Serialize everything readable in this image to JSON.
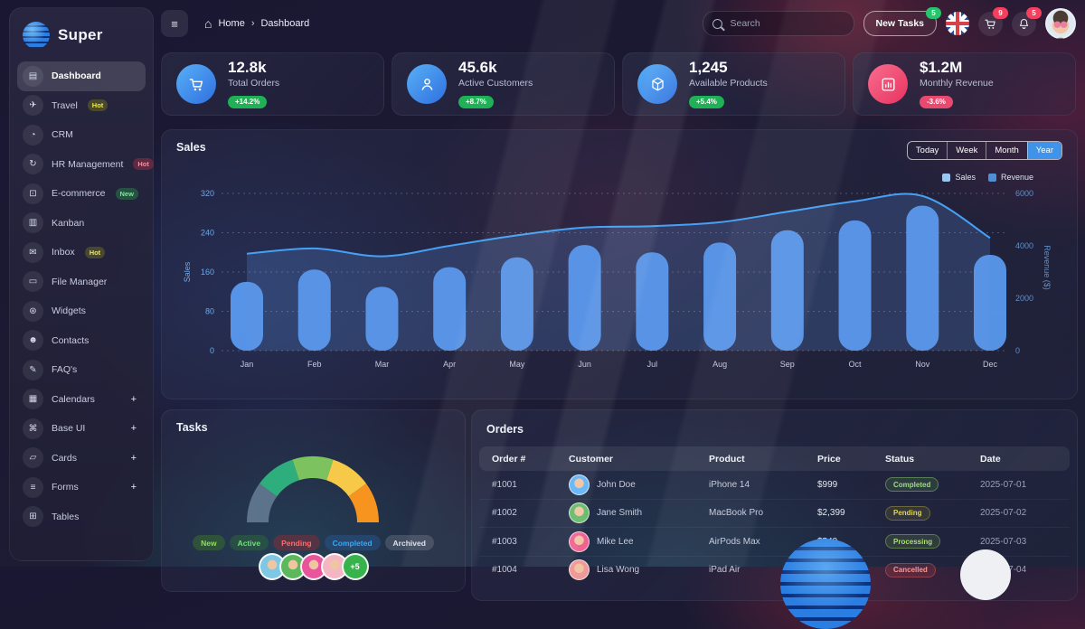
{
  "brand": {
    "name": "Super"
  },
  "topbar": {
    "breadcrumb": [
      "Home",
      "Dashboard"
    ],
    "search_placeholder": "Search",
    "new_tasks": {
      "label": "New Tasks",
      "badge": "5"
    },
    "cart_badge": "9",
    "notification_badge": "5"
  },
  "sidebar": {
    "items": [
      {
        "label": "Dashboard",
        "icon": "dashboard-icon",
        "active": true
      },
      {
        "label": "Travel",
        "icon": "travel-icon",
        "badge": {
          "text": "Hot",
          "style": "hot-yellow"
        }
      },
      {
        "label": "CRM",
        "icon": "crm-icon"
      },
      {
        "label": "HR Management",
        "icon": "hr-icon",
        "badge": {
          "text": "Hot",
          "style": "hot-red"
        }
      },
      {
        "label": "E-commerce",
        "icon": "ecommerce-icon",
        "badge": {
          "text": "New",
          "style": "new-green"
        }
      },
      {
        "label": "Kanban",
        "icon": "kanban-icon"
      },
      {
        "label": "Inbox",
        "icon": "inbox-icon",
        "badge": {
          "text": "Hot",
          "style": "hot-yellow"
        }
      },
      {
        "label": "File Manager",
        "icon": "file-manager-icon"
      },
      {
        "label": "Widgets",
        "icon": "widgets-icon"
      },
      {
        "label": "Contacts",
        "icon": "contacts-icon"
      },
      {
        "label": "FAQ's",
        "icon": "faq-icon"
      },
      {
        "label": "Calendars",
        "icon": "calendars-icon",
        "expandable": true
      },
      {
        "label": "Base UI",
        "icon": "base-ui-icon",
        "expandable": true
      },
      {
        "label": "Cards",
        "icon": "cards-icon",
        "expandable": true
      },
      {
        "label": "Forms",
        "icon": "forms-icon",
        "expandable": true
      },
      {
        "label": "Tables",
        "icon": "tables-icon"
      }
    ]
  },
  "stats": [
    {
      "value": "12.8k",
      "label": "Total Orders",
      "delta": "+14.2%",
      "trend": "up",
      "icon": "cart-icon",
      "color": "#2f80ed"
    },
    {
      "value": "45.6k",
      "label": "Active Customers",
      "delta": "+8.7%",
      "trend": "up",
      "icon": "customers-icon",
      "color": "#2f80ed"
    },
    {
      "value": "1,245",
      "label": "Available Products",
      "delta": "+5.4%",
      "trend": "up",
      "icon": "products-icon",
      "color": "#2f80ed"
    },
    {
      "value": "$1.2M",
      "label": "Monthly Revenue",
      "delta": "-3.6%",
      "trend": "down",
      "icon": "revenue-icon",
      "color": "#ef4565"
    }
  ],
  "sales_panel": {
    "title": "Sales",
    "tabs": [
      "Today",
      "Week",
      "Month",
      "Year"
    ],
    "active_tab": "Year",
    "legend": [
      {
        "label": "Sales",
        "color": "#9cc6f2"
      },
      {
        "label": "Revenue",
        "color": "#4f8fd6"
      }
    ]
  },
  "chart_data": {
    "type": "bar",
    "title": "Sales",
    "categories": [
      "Jan",
      "Feb",
      "Mar",
      "Apr",
      "May",
      "Jun",
      "Jul",
      "Aug",
      "Sep",
      "Oct",
      "Nov",
      "Dec"
    ],
    "series": [
      {
        "name": "Sales",
        "type": "bar",
        "axis": "left",
        "color": "#5b9cf3",
        "values": [
          140,
          165,
          130,
          170,
          190,
          215,
          200,
          220,
          245,
          265,
          295,
          195
        ]
      },
      {
        "name": "Revenue",
        "type": "line",
        "axis": "right",
        "color": "#45a1f5",
        "values": [
          3700,
          3900,
          3600,
          4000,
          4400,
          4700,
          4750,
          4900,
          5300,
          5700,
          5900,
          4300
        ]
      }
    ],
    "left_axis": {
      "label": "Sales",
      "ticks": [
        0,
        80,
        160,
        240,
        320
      ],
      "max": 320
    },
    "right_axis": {
      "label": "Revenue ($)",
      "ticks": [
        0,
        2000,
        4000,
        6000
      ],
      "max": 6000
    },
    "grid": "dashed",
    "legend_position": "top-right"
  },
  "tasks_panel": {
    "title": "Tasks",
    "gauge": {
      "type": "half-donut",
      "segments": [
        {
          "color": "#5d738c"
        },
        {
          "color": "#2fae7d"
        },
        {
          "color": "#7cc35f"
        },
        {
          "color": "#f7c948"
        },
        {
          "color": "#f7941f"
        }
      ]
    },
    "tags": [
      {
        "label": "New",
        "style": "new"
      },
      {
        "label": "Active",
        "style": "active"
      },
      {
        "label": "Pending",
        "style": "pending"
      },
      {
        "label": "Completed",
        "style": "completed"
      },
      {
        "label": "Archived",
        "style": "archived"
      }
    ],
    "avatar_colors": [
      "#7ec8e3",
      "#5cb85c",
      "#e9559c",
      "#f4b6c2"
    ],
    "avatars_more": "+5"
  },
  "orders_panel": {
    "title": "Orders",
    "columns": [
      "Order #",
      "Customer",
      "Product",
      "Price",
      "Status",
      "Date"
    ],
    "rows": [
      {
        "order": "#1001",
        "customer": "John Doe",
        "avatar_color": "#64b5f6",
        "product": "iPhone 14",
        "price": "$999",
        "status": "Completed",
        "date": "2025-07-01"
      },
      {
        "order": "#1002",
        "customer": "Jane Smith",
        "avatar_color": "#66bb6a",
        "product": "MacBook Pro",
        "price": "$2,399",
        "status": "Pending",
        "date": "2025-07-02"
      },
      {
        "order": "#1003",
        "customer": "Mike Lee",
        "avatar_color": "#f06292",
        "product": "AirPods Max",
        "price": "$549",
        "status": "Processing",
        "date": "2025-07-03"
      },
      {
        "order": "#1004",
        "customer": "Lisa Wong",
        "avatar_color": "#ef9a9a",
        "product": "iPad Air",
        "price": "",
        "status": "Cancelled",
        "date": "2025-07-04"
      }
    ]
  },
  "theme": {
    "accent_blue": "#3f93e8",
    "bar_color": "#5b9cf3",
    "line_color": "#45a1f5",
    "up_green": "#1fb155",
    "down_red": "#e84a6f"
  }
}
